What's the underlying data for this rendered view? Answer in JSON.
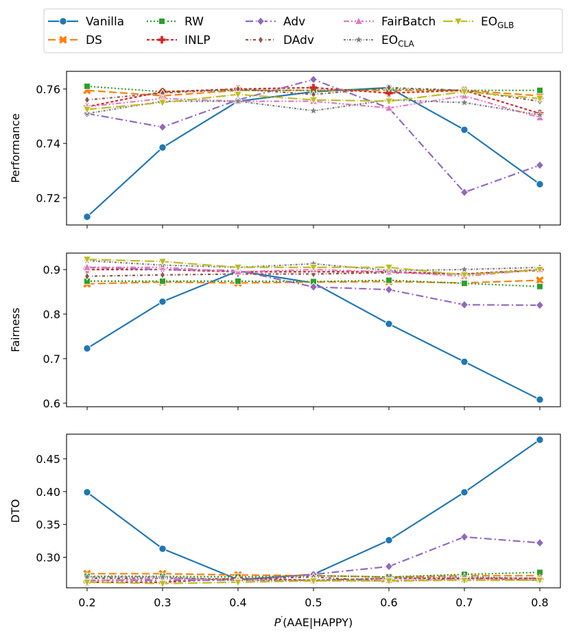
{
  "chart_data": {
    "type": "line",
    "x": [
      0.2,
      0.3,
      0.4,
      0.5,
      0.6,
      0.7,
      0.8
    ],
    "x_ticklabels": [
      "0.2",
      "0.3",
      "0.4",
      "0.5",
      "0.6",
      "0.7",
      "0.8"
    ],
    "xlabel_main": "P",
    "xlabel_prime": "′",
    "xlabel_rest": "(AAE|HAPPY)",
    "legend_position": "top",
    "grid": false,
    "series": [
      {
        "name": "Vanilla",
        "color": "#1f77b4",
        "dash": "",
        "marker": "circle"
      },
      {
        "name": "DS",
        "color": "#ff7f0e",
        "dash": "11,5",
        "marker": "x"
      },
      {
        "name": "RW",
        "color": "#2ca02c",
        "dash": "2,3",
        "marker": "square"
      },
      {
        "name": "INLP",
        "color": "#d62728",
        "dash": "4,3",
        "marker": "plus"
      },
      {
        "name": "Adv",
        "color": "#9467bd",
        "dash": "11,4,2,4",
        "marker": "diamond"
      },
      {
        "name": "DAdv",
        "color": "#8c564b",
        "dash": "4,3,1,3",
        "marker": "thin_diamond"
      },
      {
        "name": "FairBatch",
        "color": "#e377c2",
        "dash": "8,3,2,3,2,3",
        "marker": "triangle_up"
      },
      {
        "name": "EO",
        "sub": "CLA",
        "color": "#7f7f7f",
        "dash": "3,2,1,2",
        "marker": "star"
      },
      {
        "name": "EO",
        "sub": "GLB",
        "color": "#bcbd22",
        "dash": "14,3,1,3",
        "marker": "triangle_down"
      }
    ],
    "panels": [
      {
        "ylabel": "Performance",
        "ylim": [
          0.71,
          0.7665
        ],
        "yticks": [
          0.72,
          0.74,
          0.76
        ],
        "yticklabels": [
          "0.72",
          "0.74",
          "0.76"
        ],
        "values": [
          [
            0.713,
            0.7385,
            0.7555,
            0.759,
            0.7605,
            0.745,
            0.725
          ],
          [
            0.7595,
            0.7575,
            0.7595,
            0.7595,
            0.7595,
            0.7595,
            0.7575
          ],
          [
            0.761,
            0.759,
            0.7595,
            0.7595,
            0.76,
            0.7595,
            0.7595
          ],
          [
            0.7535,
            0.759,
            0.76,
            0.7605,
            0.7585,
            0.7595,
            0.751
          ],
          [
            0.751,
            0.746,
            0.756,
            0.7635,
            0.753,
            0.722,
            0.732
          ],
          [
            0.756,
            0.7585,
            0.76,
            0.758,
            0.7605,
            0.7595,
            0.7555
          ],
          [
            0.7535,
            0.7565,
            0.7555,
            0.7555,
            0.753,
            0.7575,
            0.7495
          ],
          [
            0.751,
            0.7555,
            0.7555,
            0.752,
            0.756,
            0.755,
            0.7505
          ],
          [
            0.7525,
            0.755,
            0.758,
            0.756,
            0.7555,
            0.759,
            0.7565
          ]
        ]
      },
      {
        "ylabel": "Fairness",
        "ylim": [
          0.592,
          0.937
        ],
        "yticks": [
          0.6,
          0.7,
          0.8,
          0.9
        ],
        "yticklabels": [
          "0.6",
          "0.7",
          "0.8",
          "0.9"
        ],
        "values": [
          [
            0.723,
            0.828,
            0.897,
            0.87,
            0.778,
            0.693,
            0.608
          ],
          [
            0.868,
            0.872,
            0.87,
            0.872,
            0.873,
            0.87,
            0.876
          ],
          [
            0.874,
            0.874,
            0.874,
            0.873,
            0.876,
            0.869,
            0.862
          ],
          [
            0.9,
            0.9,
            0.895,
            0.895,
            0.895,
            0.89,
            0.9
          ],
          [
            0.905,
            0.9,
            0.898,
            0.861,
            0.855,
            0.821,
            0.82
          ],
          [
            0.885,
            0.888,
            0.89,
            0.89,
            0.893,
            0.89,
            0.898
          ],
          [
            0.905,
            0.905,
            0.895,
            0.9,
            0.895,
            0.885,
            0.9
          ],
          [
            0.92,
            0.91,
            0.905,
            0.913,
            0.898,
            0.9,
            0.905
          ],
          [
            0.923,
            0.918,
            0.905,
            0.905,
            0.905,
            0.888,
            0.9
          ]
        ]
      },
      {
        "ylabel": "DTO",
        "ylim": [
          0.2535,
          0.4875
        ],
        "yticks": [
          0.25,
          0.3,
          0.35,
          0.4,
          0.45
        ],
        "yticklabels": [
          "0.25",
          "0.30",
          "0.35",
          "0.40",
          "0.45"
        ],
        "values": [
          [
            0.399,
            0.313,
            0.266,
            0.274,
            0.326,
            0.399,
            0.479
          ],
          [
            0.275,
            0.275,
            0.273,
            0.272,
            0.27,
            0.272,
            0.272
          ],
          [
            0.271,
            0.271,
            0.27,
            0.272,
            0.27,
            0.274,
            0.277
          ],
          [
            0.262,
            0.262,
            0.268,
            0.265,
            0.268,
            0.268,
            0.268
          ],
          [
            0.265,
            0.265,
            0.265,
            0.274,
            0.286,
            0.331,
            0.322
          ],
          [
            0.268,
            0.268,
            0.267,
            0.27,
            0.263,
            0.268,
            0.265
          ],
          [
            0.264,
            0.268,
            0.265,
            0.264,
            0.265,
            0.266,
            0.266
          ],
          [
            0.27,
            0.27,
            0.265,
            0.265,
            0.268,
            0.27,
            0.268
          ],
          [
            0.262,
            0.26,
            0.262,
            0.264,
            0.264,
            0.265,
            0.265
          ]
        ]
      }
    ]
  }
}
